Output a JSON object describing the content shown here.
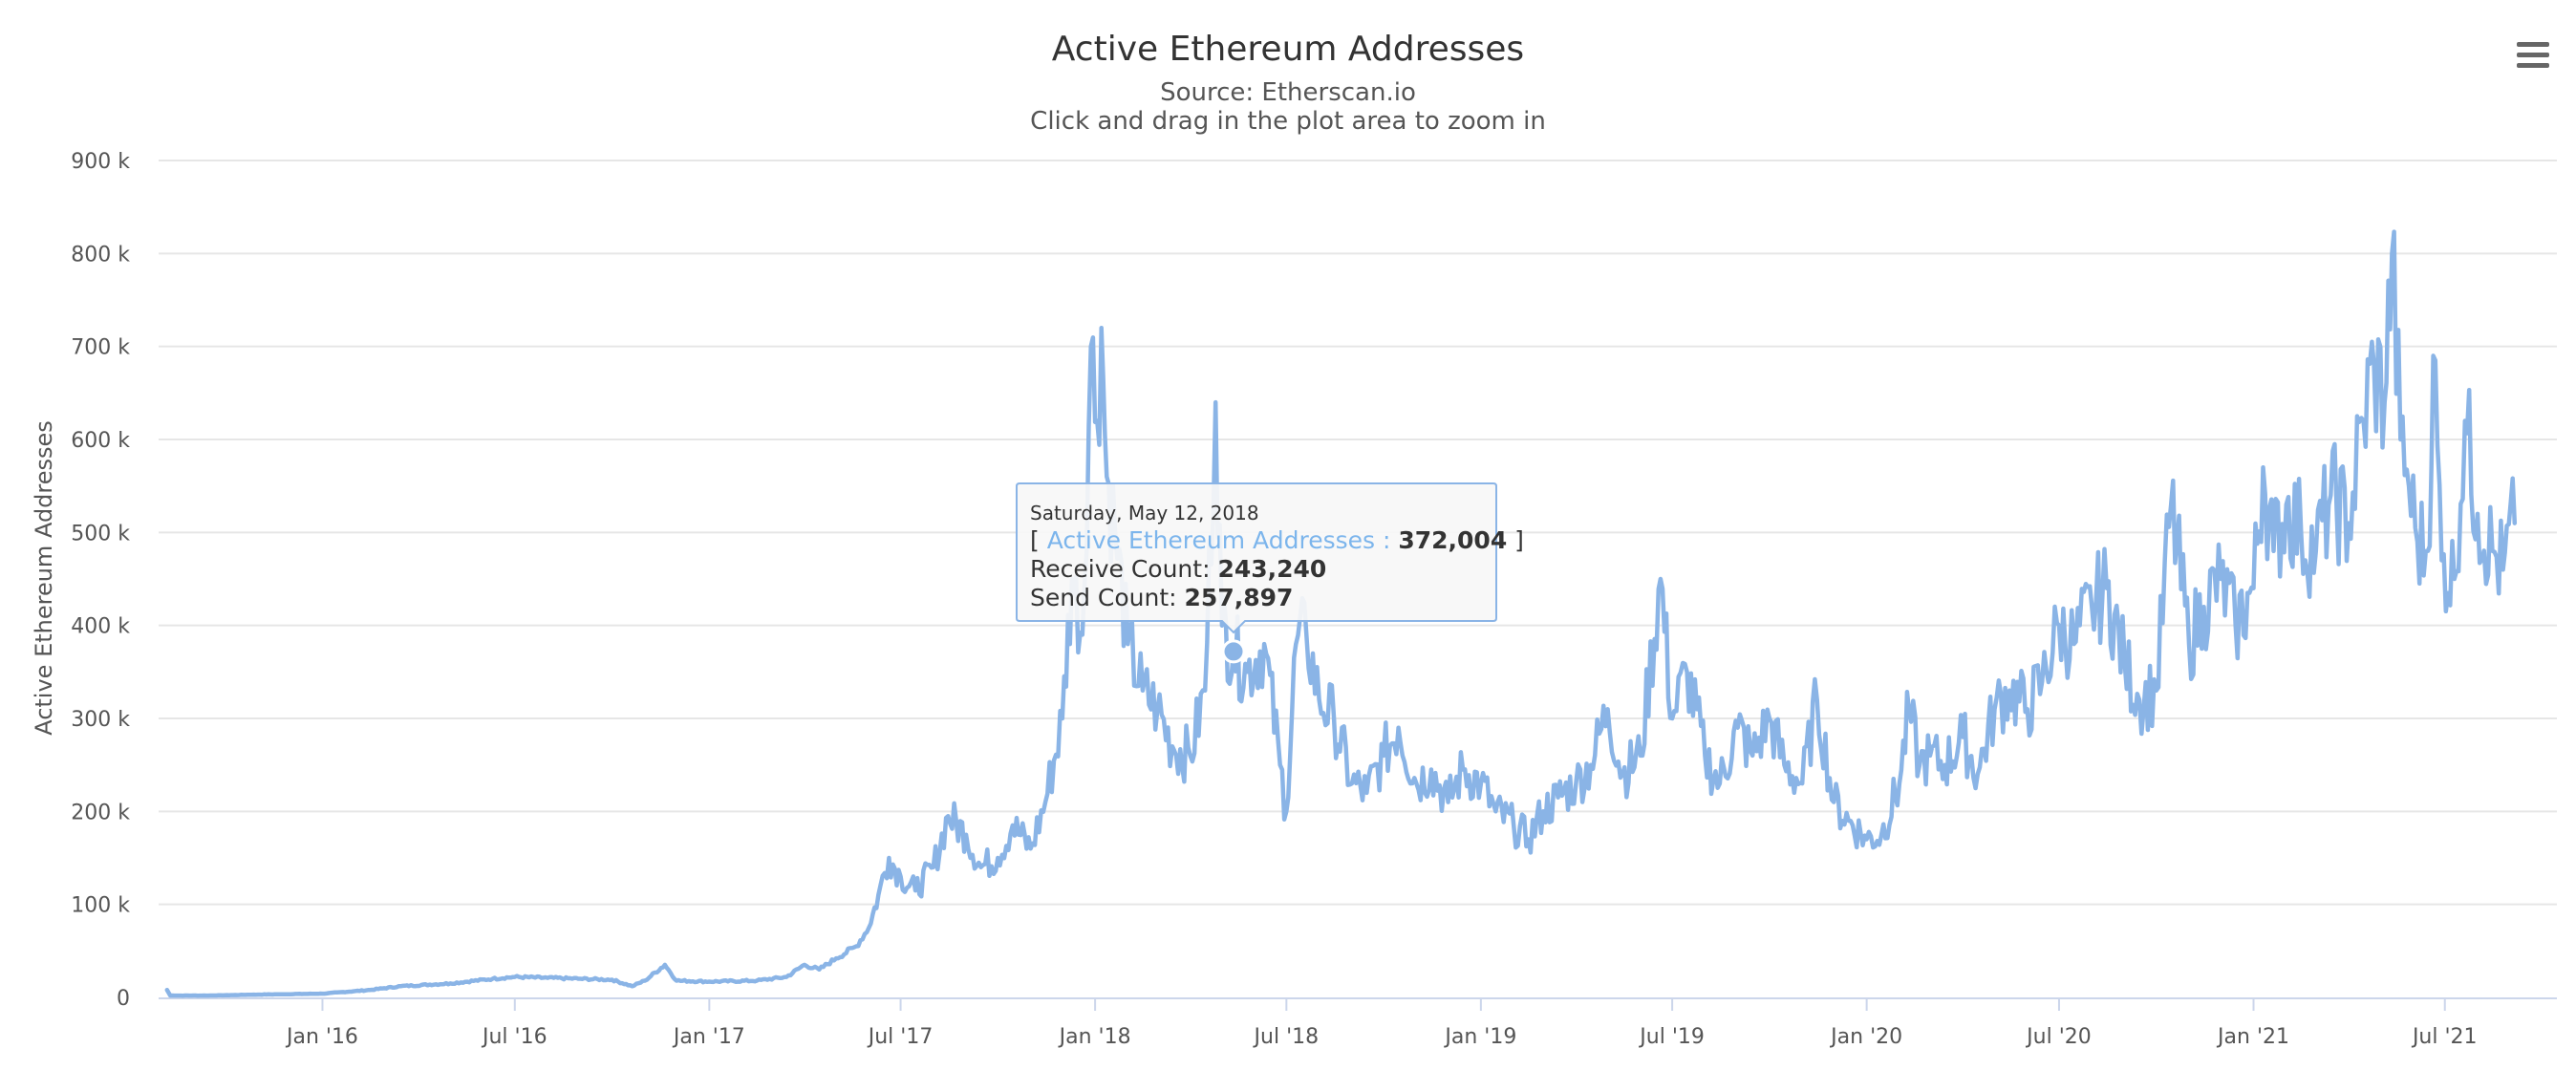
{
  "chart_data": {
    "type": "line",
    "title": "Active Ethereum Addresses",
    "subtitle_lines": [
      "Source: Etherscan.io",
      "Click and drag in the plot area to zoom in"
    ],
    "xlabel": "",
    "ylabel": "Active Ethereum Addresses",
    "ylim": [
      0,
      900000
    ],
    "y_ticks": [
      {
        "value": 0,
        "label": "0"
      },
      {
        "value": 100000,
        "label": "100 k"
      },
      {
        "value": 200000,
        "label": "200 k"
      },
      {
        "value": 300000,
        "label": "300 k"
      },
      {
        "value": 400000,
        "label": "400 k"
      },
      {
        "value": 500000,
        "label": "500 k"
      },
      {
        "value": 600000,
        "label": "600 k"
      },
      {
        "value": 700000,
        "label": "700 k"
      },
      {
        "value": 800000,
        "label": "800 k"
      },
      {
        "value": 900000,
        "label": "900 k"
      }
    ],
    "xlim": [
      "2015-07-30",
      "2021-10-15"
    ],
    "x_ticks": [
      {
        "date": "2016-01-01",
        "label": "Jan '16"
      },
      {
        "date": "2016-07-01",
        "label": "Jul '16"
      },
      {
        "date": "2017-01-01",
        "label": "Jan '17"
      },
      {
        "date": "2017-07-01",
        "label": "Jul '17"
      },
      {
        "date": "2018-01-01",
        "label": "Jan '18"
      },
      {
        "date": "2018-07-01",
        "label": "Jul '18"
      },
      {
        "date": "2019-01-01",
        "label": "Jan '19"
      },
      {
        "date": "2019-07-01",
        "label": "Jul '19"
      },
      {
        "date": "2020-01-01",
        "label": "Jan '20"
      },
      {
        "date": "2020-07-01",
        "label": "Jul '20"
      },
      {
        "date": "2021-01-01",
        "label": "Jan '21"
      },
      {
        "date": "2021-07-01",
        "label": "Jul '21"
      }
    ],
    "grid": true,
    "legend": "none",
    "series": [
      {
        "name": "Active Ethereum Addresses",
        "color": "#8ab4e6",
        "points": [
          [
            "2015-08-07",
            8000
          ],
          [
            "2015-08-10",
            2000
          ],
          [
            "2015-09-15",
            2000
          ],
          [
            "2015-11-01",
            3000
          ],
          [
            "2016-01-01",
            4000
          ],
          [
            "2016-02-15",
            8000
          ],
          [
            "2016-03-15",
            12000
          ],
          [
            "2016-05-01",
            15000
          ],
          [
            "2016-06-10",
            20000
          ],
          [
            "2016-07-01",
            22000
          ],
          [
            "2016-08-01",
            21000
          ],
          [
            "2016-09-01",
            20000
          ],
          [
            "2016-10-01",
            19000
          ],
          [
            "2016-10-20",
            12000
          ],
          [
            "2016-11-01",
            18000
          ],
          [
            "2016-11-20",
            35000
          ],
          [
            "2016-12-01",
            18000
          ],
          [
            "2017-01-01",
            17000
          ],
          [
            "2017-02-15",
            18000
          ],
          [
            "2017-03-15",
            22000
          ],
          [
            "2017-04-01",
            35000
          ],
          [
            "2017-04-15",
            30000
          ],
          [
            "2017-05-01",
            42000
          ],
          [
            "2017-05-20",
            55000
          ],
          [
            "2017-06-01",
            75000
          ],
          [
            "2017-06-10",
            110000
          ],
          [
            "2017-06-20",
            150000
          ],
          [
            "2017-07-01",
            130000
          ],
          [
            "2017-07-15",
            115000
          ],
          [
            "2017-08-01",
            140000
          ],
          [
            "2017-08-15",
            195000
          ],
          [
            "2017-09-01",
            175000
          ],
          [
            "2017-09-15",
            140000
          ],
          [
            "2017-10-01",
            150000
          ],
          [
            "2017-10-15",
            185000
          ],
          [
            "2017-11-01",
            160000
          ],
          [
            "2017-11-15",
            210000
          ],
          [
            "2017-12-01",
            300000
          ],
          [
            "2017-12-10",
            450000
          ],
          [
            "2017-12-20",
            390000
          ],
          [
            "2017-12-28",
            700000
          ],
          [
            "2018-01-03",
            620000
          ],
          [
            "2018-01-07",
            720000
          ],
          [
            "2018-01-12",
            560000
          ],
          [
            "2018-01-20",
            500000
          ],
          [
            "2018-02-01",
            380000
          ],
          [
            "2018-02-15",
            330000
          ],
          [
            "2018-03-01",
            310000
          ],
          [
            "2018-03-15",
            270000
          ],
          [
            "2018-04-01",
            260000
          ],
          [
            "2018-04-15",
            330000
          ],
          [
            "2018-04-25",
            640000
          ],
          [
            "2018-05-01",
            400000
          ],
          [
            "2018-05-12",
            372004
          ],
          [
            "2018-05-25",
            350000
          ],
          [
            "2018-06-10",
            380000
          ],
          [
            "2018-06-25",
            250000
          ],
          [
            "2018-07-01",
            200000
          ],
          [
            "2018-07-10",
            380000
          ],
          [
            "2018-07-20",
            390000
          ],
          [
            "2018-08-01",
            320000
          ],
          [
            "2018-08-15",
            300000
          ],
          [
            "2018-09-01",
            230000
          ],
          [
            "2018-09-15",
            220000
          ],
          [
            "2018-10-01",
            260000
          ],
          [
            "2018-10-15",
            290000
          ],
          [
            "2018-11-01",
            230000
          ],
          [
            "2018-11-15",
            245000
          ],
          [
            "2018-12-01",
            210000
          ],
          [
            "2018-12-15",
            245000
          ],
          [
            "2019-01-01",
            230000
          ],
          [
            "2019-01-15",
            200000
          ],
          [
            "2019-02-01",
            185000
          ],
          [
            "2019-02-15",
            170000
          ],
          [
            "2019-03-01",
            200000
          ],
          [
            "2019-03-15",
            215000
          ],
          [
            "2019-04-01",
            230000
          ],
          [
            "2019-04-15",
            250000
          ],
          [
            "2019-05-01",
            310000
          ],
          [
            "2019-05-15",
            240000
          ],
          [
            "2019-06-01",
            260000
          ],
          [
            "2019-06-20",
            450000
          ],
          [
            "2019-07-01",
            300000
          ],
          [
            "2019-07-15",
            350000
          ],
          [
            "2019-08-01",
            260000
          ],
          [
            "2019-08-15",
            230000
          ],
          [
            "2019-09-01",
            290000
          ],
          [
            "2019-09-15",
            260000
          ],
          [
            "2019-10-01",
            300000
          ],
          [
            "2019-10-15",
            250000
          ],
          [
            "2019-11-01",
            230000
          ],
          [
            "2019-11-15",
            320000
          ],
          [
            "2019-12-01",
            210000
          ],
          [
            "2019-12-15",
            190000
          ],
          [
            "2020-01-01",
            170000
          ],
          [
            "2020-01-15",
            175000
          ],
          [
            "2020-02-01",
            230000
          ],
          [
            "2020-02-10",
            310000
          ],
          [
            "2020-02-20",
            250000
          ],
          [
            "2020-03-01",
            260000
          ],
          [
            "2020-03-15",
            250000
          ],
          [
            "2020-04-01",
            280000
          ],
          [
            "2020-04-15",
            240000
          ],
          [
            "2020-05-01",
            310000
          ],
          [
            "2020-05-15",
            330000
          ],
          [
            "2020-06-01",
            310000
          ],
          [
            "2020-06-15",
            340000
          ],
          [
            "2020-07-01",
            400000
          ],
          [
            "2020-07-15",
            380000
          ],
          [
            "2020-08-01",
            420000
          ],
          [
            "2020-08-15",
            440000
          ],
          [
            "2020-09-01",
            360000
          ],
          [
            "2020-09-15",
            320000
          ],
          [
            "2020-10-01",
            330000
          ],
          [
            "2020-10-15",
            530000
          ],
          [
            "2020-11-01",
            380000
          ],
          [
            "2020-11-15",
            420000
          ],
          [
            "2020-12-01",
            450000
          ],
          [
            "2020-12-15",
            400000
          ],
          [
            "2021-01-01",
            440000
          ],
          [
            "2021-01-10",
            570000
          ],
          [
            "2021-01-20",
            480000
          ],
          [
            "2021-02-01",
            530000
          ],
          [
            "2021-02-15",
            500000
          ],
          [
            "2021-03-01",
            480000
          ],
          [
            "2021-03-15",
            540000
          ],
          [
            "2021-04-01",
            510000
          ],
          [
            "2021-04-15",
            620000
          ],
          [
            "2021-04-25",
            680000
          ],
          [
            "2021-05-05",
            640000
          ],
          [
            "2021-05-12",
            800000
          ],
          [
            "2021-05-20",
            600000
          ],
          [
            "2021-05-28",
            550000
          ],
          [
            "2021-06-05",
            490000
          ],
          [
            "2021-06-15",
            480000
          ],
          [
            "2021-06-20",
            690000
          ],
          [
            "2021-06-28",
            470000
          ],
          [
            "2021-07-10",
            450000
          ],
          [
            "2021-07-20",
            620000
          ],
          [
            "2021-08-01",
            520000
          ],
          [
            "2021-08-15",
            480000
          ],
          [
            "2021-08-25",
            460000
          ],
          [
            "2021-09-05",
            510000
          ]
        ]
      }
    ],
    "tooltip": {
      "date": "Saturday, May 12, 2018",
      "open_bracket": "[ ",
      "series_label": "Active Ethereum Addresses",
      "separator": " : ",
      "value_text": "372,004",
      "close_bracket": " ]",
      "receive_label": "Receive Count: ",
      "receive_value": "243,240",
      "send_label": "Send Count: ",
      "send_value": "257,897",
      "point_date": "2018-05-12",
      "point_value": 372004
    }
  },
  "menu": {
    "icon": "hamburger-menu-icon"
  }
}
